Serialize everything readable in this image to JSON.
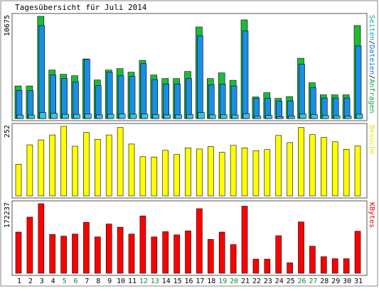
{
  "chart_data": {
    "title": "Tagesübersicht für Juli 2014",
    "days": [
      "1",
      "2",
      "3",
      "4",
      "5",
      "6",
      "7",
      "8",
      "9",
      "10",
      "11",
      "12",
      "13",
      "14",
      "15",
      "16",
      "17",
      "18",
      "19",
      "20",
      "21",
      "22",
      "23",
      "24",
      "25",
      "26",
      "27",
      "28",
      "29",
      "30",
      "31"
    ],
    "weekend_days": [
      "5",
      "6",
      "12",
      "13",
      "19",
      "20",
      "26",
      "27"
    ],
    "weekday_color": "#000000",
    "weekend_color": "#0d8a2a",
    "panels": [
      {
        "type": "bar",
        "max_label": "10675",
        "ymax": 10675,
        "legend_parts": [
          {
            "text": "Seiten",
            "color": "#00aaaa"
          },
          {
            "text": "/",
            "color": "#000000"
          },
          {
            "text": "Dateien",
            "color": "#0077ee"
          },
          {
            "text": "/",
            "color": "#000000"
          },
          {
            "text": "Anfragen",
            "color": "#00aa33"
          }
        ],
        "series": [
          {
            "name": "Anfragen",
            "color": "#1dbb3a",
            "values": [
              3401,
              3401,
              10675,
              5061,
              4617,
              4469,
              6218,
              4025,
              5061,
              5209,
              4838,
              6069,
              4543,
              4173,
              4173,
              4912,
              9566,
              4173,
              4765,
              3994,
              10305,
              2255,
              2699,
              2106,
              2292,
              6292,
              3734,
              2477,
              2477,
              2477,
              9714
            ]
          },
          {
            "name": "Dateien",
            "color": "#1a8ee6",
            "values": [
              2920,
              2920,
              9714,
              4543,
              4173,
              3839,
              6181,
              3439,
              4838,
              4468,
              4394,
              5727,
              4062,
              3616,
              3616,
              4173,
              8642,
              3512,
              3585,
              3400,
              9158,
              2106,
              2106,
              1810,
              1847,
              5681,
              3216,
              2144,
              2144,
              2144,
              7570
            ]
          },
          {
            "name": "Seiten",
            "color": "#3cc3e0",
            "values": [
              360,
              360,
              612,
              540,
              446,
              436,
              474,
              375,
              448,
              470,
              461,
              480,
              410,
              380,
              380,
              423,
              624,
              377,
              390,
              370,
              512,
              240,
              320,
              187,
              245,
              474,
              407,
              316,
              289,
              262,
              450
            ]
          }
        ]
      },
      {
        "type": "bar",
        "max_label": "252",
        "ymax": 252,
        "legend": "Besuche",
        "legend_color": "#e6e600",
        "series": [
          {
            "name": "Besuche",
            "color": "#ffff00",
            "values": [
              115,
              185,
              203,
              221,
              252,
              180,
              230,
              205,
              221,
              248,
              188,
              142,
              141,
              165,
              150,
              174,
              170,
              179,
              158,
              183,
              174,
              164,
              168,
              219,
              193,
              248,
              222,
              212,
              196,
              169,
              181
            ]
          }
        ]
      },
      {
        "type": "bar",
        "max_label": "172237",
        "ymax": 172237,
        "legend": "KBytes",
        "legend_color": "#e60000",
        "series": [
          {
            "name": "KBytes",
            "color": "#ff0000",
            "values": [
              102000,
              139000,
              172237,
              96000,
              92000,
              97000,
              126000,
              90000,
              122000,
              114000,
              97000,
              142000,
              90000,
              103000,
              95000,
              105000,
              160000,
              84000,
              102000,
              71000,
              166000,
              35000,
              35000,
              93000,
              26000,
              127000,
              67000,
              41000,
              36000,
              36000,
              104000
            ]
          }
        ]
      }
    ]
  }
}
